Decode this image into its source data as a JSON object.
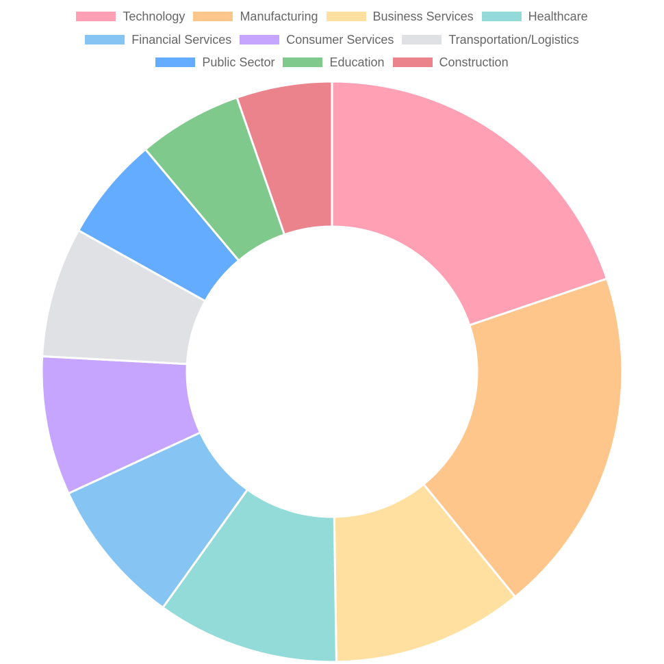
{
  "chart_data": {
    "type": "pie",
    "variant": "doughnut",
    "categories": [
      "Technology",
      "Manufacturing",
      "Business Services",
      "Healthcare",
      "Financial Services",
      "Consumer Services",
      "Transportation/Logistics",
      "Public Sector",
      "Education",
      "Construction"
    ],
    "values": [
      20.5,
      20.0,
      11.0,
      10.5,
      8.5,
      8.0,
      7.5,
      6.0,
      6.0,
      5.5
    ],
    "colors": [
      "#ffa0b4",
      "#ffc68b",
      "#ffe0a0",
      "#93dbd8",
      "#86c5f3",
      "#c5a5ff",
      "#e0e1e4",
      "#63acff",
      "#7ec98b",
      "#ea838c"
    ],
    "legend_position": "top",
    "title": ""
  }
}
